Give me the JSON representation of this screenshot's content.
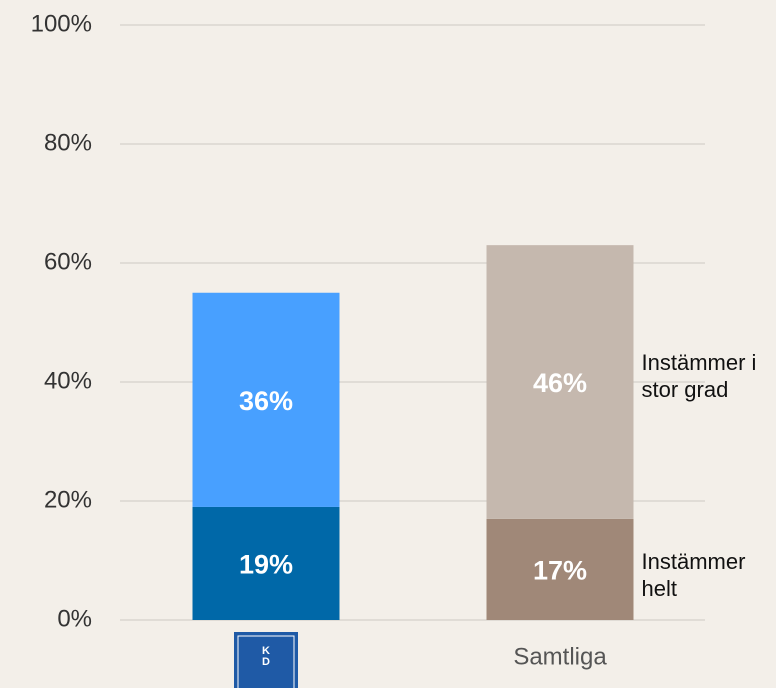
{
  "chart_data": {
    "type": "stacked_bar",
    "categories": [
      null,
      "Samtliga"
    ],
    "logo": [
      "K",
      "D"
    ],
    "series": [
      {
        "name": "Instämmer helt",
        "colors": [
          "#0068a8",
          "#a08878"
        ],
        "values": [
          19,
          17
        ],
        "value_labels": [
          "19%",
          "17%"
        ]
      },
      {
        "name": "Instämmer i stor grad",
        "colors": [
          "#48a0ff",
          "#c5b8ae"
        ],
        "values": [
          36,
          46
        ],
        "value_labels": [
          "36%",
          "46%"
        ]
      }
    ],
    "ylim": [
      0,
      100
    ],
    "yticks": [
      {
        "value": 0,
        "label": "0%"
      },
      {
        "value": 20,
        "label": "20%"
      },
      {
        "value": 40,
        "label": "40%"
      },
      {
        "value": 60,
        "label": "60%"
      },
      {
        "value": 80,
        "label": "80%"
      },
      {
        "value": 100,
        "label": "100%"
      }
    ],
    "grid": true
  }
}
